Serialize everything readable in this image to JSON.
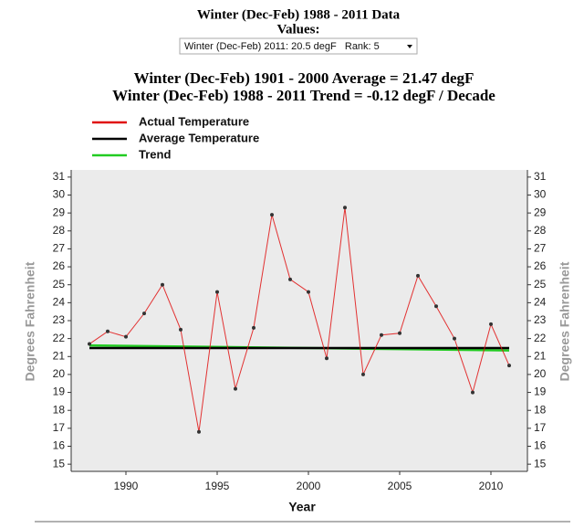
{
  "chart_data": {
    "type": "line",
    "title": "Winter (Dec-Feb) 1988 - 2011 Data",
    "selector_label": "Values:",
    "selector_value": "Winter (Dec-Feb) 2011: 20.5 degF   Rank: 5",
    "subtitle": [
      "Winter (Dec-Feb) 1901 - 2000 Average = 21.47 degF",
      "Winter (Dec-Feb) 1988 - 2011 Trend = -0.12 degF / Decade"
    ],
    "x_label": "Year",
    "y_label": "Degrees Fahrenheit",
    "x": [
      1988,
      1989,
      1990,
      1991,
      1992,
      1993,
      1994,
      1995,
      1996,
      1997,
      1998,
      1999,
      2000,
      2001,
      2002,
      2003,
      2004,
      2005,
      2006,
      2007,
      2008,
      2009,
      2010,
      2011
    ],
    "series": [
      {
        "name": "Actual Temperature",
        "color": "#e01010",
        "values": [
          21.7,
          22.4,
          22.1,
          23.4,
          25.0,
          22.5,
          16.8,
          24.6,
          19.2,
          22.6,
          28.9,
          25.3,
          24.6,
          20.9,
          29.3,
          20.0,
          22.2,
          22.3,
          25.5,
          23.8,
          22.0,
          19.0,
          22.8,
          20.5
        ]
      },
      {
        "name": "Average Temperature",
        "color": "#000000",
        "x": [
          1988,
          2011
        ],
        "values": [
          21.47,
          21.47
        ]
      },
      {
        "name": "Trend",
        "color": "#22cc22",
        "x": [
          1988,
          2011
        ],
        "values": [
          21.62,
          21.34
        ]
      }
    ],
    "xlim": [
      1987,
      2012
    ],
    "xticks": [
      1990,
      1995,
      2000,
      2005,
      2010
    ],
    "ylim": [
      14.6,
      31.4
    ],
    "yticks": [
      15,
      16,
      17,
      18,
      19,
      20,
      21,
      22,
      23,
      24,
      25,
      26,
      27,
      28,
      29,
      30,
      31
    ]
  }
}
